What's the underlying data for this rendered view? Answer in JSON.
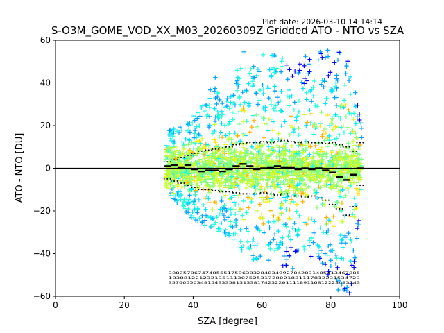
{
  "chart_data": {
    "type": "scatter",
    "plot_date": "Plot date: 2026-03-10 14:14:14",
    "title": "S-O3M_GOME_VOD_XX_M03_20260309Z Gridded ATO - NTO vs SZA",
    "xlabel": "SZA [degree]",
    "ylabel": "ATO - NTO [DU]",
    "xlim": [
      0,
      100
    ],
    "ylim": [
      -60,
      60
    ],
    "xticks": [
      "0",
      "20",
      "40",
      "60",
      "80",
      "100"
    ],
    "yticks": [
      "60",
      "40",
      "20",
      "0",
      "−20",
      "−40",
      "−60"
    ],
    "reference_line_y": 0,
    "marker": "+",
    "colormap": [
      "#0000ff",
      "#00a0ff",
      "#00e5ff",
      "#20ffd8",
      "#7fff7f",
      "#c8ff30",
      "#ffe600",
      "#ffb000"
    ],
    "scatter_extent": {
      "x_range": [
        32,
        89
      ],
      "upper_envelope": [
        [
          32,
          18
        ],
        [
          36,
          19
        ],
        [
          40,
          26
        ],
        [
          44,
          32
        ],
        [
          46,
          46
        ],
        [
          48,
          30
        ],
        [
          52,
          40
        ],
        [
          54,
          58
        ],
        [
          58,
          52
        ],
        [
          62,
          55
        ],
        [
          66,
          52
        ],
        [
          70,
          48
        ],
        [
          74,
          55
        ],
        [
          78,
          55
        ],
        [
          82,
          58
        ],
        [
          86,
          48
        ],
        [
          88,
          30
        ],
        [
          89,
          20
        ]
      ],
      "lower_envelope": [
        [
          32,
          -10
        ],
        [
          36,
          -18
        ],
        [
          40,
          -24
        ],
        [
          44,
          -28
        ],
        [
          48,
          -30
        ],
        [
          52,
          -34
        ],
        [
          56,
          -42
        ],
        [
          60,
          -45
        ],
        [
          64,
          -46
        ],
        [
          68,
          -48
        ],
        [
          72,
          -44
        ],
        [
          76,
          -42
        ],
        [
          80,
          -52
        ],
        [
          82,
          -58
        ],
        [
          84,
          -60
        ],
        [
          86,
          -58
        ],
        [
          88,
          -30
        ],
        [
          89,
          -10
        ]
      ]
    },
    "mean_profile": {
      "x": [
        32.5,
        34.5,
        36.5,
        38.5,
        40.5,
        42.5,
        44.5,
        46.5,
        48.5,
        50.5,
        52.5,
        54.5,
        56.5,
        58.5,
        60.5,
        62.5,
        64.5,
        66.5,
        68.5,
        70.5,
        72.5,
        74.5,
        76.5,
        78.5,
        80.5,
        82.5,
        84.5,
        86.5,
        88.5
      ],
      "y": [
        1.0,
        1.5,
        0.5,
        1.5,
        -0.5,
        -1.5,
        -1.0,
        -1.0,
        -1.5,
        -0.5,
        1.0,
        2.0,
        1.0,
        -0.5,
        0.0,
        0.5,
        1.0,
        0.5,
        0.5,
        -0.5,
        0.0,
        -0.5,
        0.0,
        -1.0,
        -2.0,
        -4.0,
        -5.5,
        -3.0,
        0.0
      ]
    },
    "upper_sigma_profile": {
      "x": [
        32.5,
        34.5,
        36.5,
        38.5,
        40.5,
        42.5,
        44.5,
        46.5,
        48.5,
        50.5,
        52.5,
        54.5,
        56.5,
        58.5,
        60.5,
        62.5,
        64.5,
        66.5,
        68.5,
        70.5,
        72.5,
        74.5,
        76.5,
        78.5,
        80.5,
        82.5,
        84.5,
        86.5,
        88.5
      ],
      "y": [
        3,
        4,
        5,
        6,
        7,
        8,
        8.5,
        9,
        9.5,
        10,
        11,
        11.5,
        12,
        12,
        12.5,
        12,
        12.5,
        13,
        12.5,
        12,
        12.5,
        12,
        12,
        11.5,
        12,
        11,
        10,
        8,
        12
      ]
    },
    "lower_sigma_profile": {
      "x": [
        32.5,
        34.5,
        36.5,
        38.5,
        40.5,
        42.5,
        44.5,
        46.5,
        48.5,
        50.5,
        52.5,
        54.5,
        56.5,
        58.5,
        60.5,
        62.5,
        64.5,
        66.5,
        68.5,
        70.5,
        72.5,
        74.5,
        76.5,
        78.5,
        80.5,
        82.5,
        84.5,
        86.5,
        88.5
      ],
      "y": [
        -5,
        -6,
        -7,
        -8,
        -9,
        -10,
        -10,
        -10.5,
        -11,
        -11,
        -11.5,
        -12,
        -12,
        -12,
        -11.5,
        -12,
        -12.5,
        -12,
        -13,
        -13,
        -13.5,
        -13,
        -14,
        -15,
        -17,
        -19,
        -22,
        -18,
        -8
      ]
    },
    "annotation_rows": [
      "3887578674748555175963832848349927842831485413467885",
      "18388122123213511130752531728021831117812231534723",
      "357665563481549335813133817423220111189116812223483543"
    ]
  }
}
